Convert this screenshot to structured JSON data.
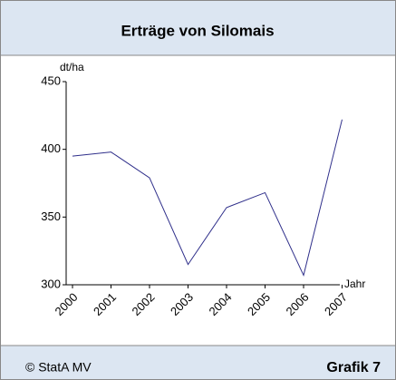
{
  "chart_data": {
    "type": "line",
    "title": "Erträge von Silomais",
    "y_label": "dt/ha",
    "x_label": "Jahr",
    "categories": [
      "2000",
      "2001",
      "2002",
      "2003",
      "2004",
      "2005",
      "2006",
      "2007"
    ],
    "series": [
      {
        "name": "Silomais",
        "color": "#2e2e8a",
        "values": [
          395,
          398,
          379,
          315,
          357,
          368,
          307,
          422
        ]
      }
    ],
    "ylim": [
      300,
      450
    ],
    "yticks": [
      300,
      350,
      400,
      450
    ]
  },
  "footer": {
    "source": "© StatA MV",
    "label": "Grafik 7"
  }
}
